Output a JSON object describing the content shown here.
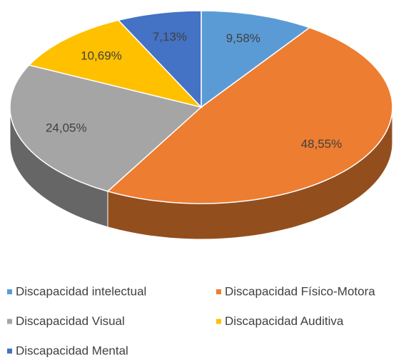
{
  "chart_data": {
    "type": "pie",
    "categories": [
      "Discapacidad intelectual",
      "Discapacidad Físico-Motora",
      "Discapacidad Visual",
      "Discapacidad Auditiva",
      "Discapacidad Mental"
    ],
    "values": [
      9.58,
      48.55,
      24.05,
      10.69,
      7.13
    ],
    "value_labels": [
      "9,58%",
      "48,55%",
      "24,05%",
      "10,69%",
      "7,13%"
    ],
    "colors": [
      "#5b9bd5",
      "#ed7d31",
      "#a5a5a5",
      "#ffc000",
      "#4472c4"
    ],
    "legend": "bottom"
  }
}
